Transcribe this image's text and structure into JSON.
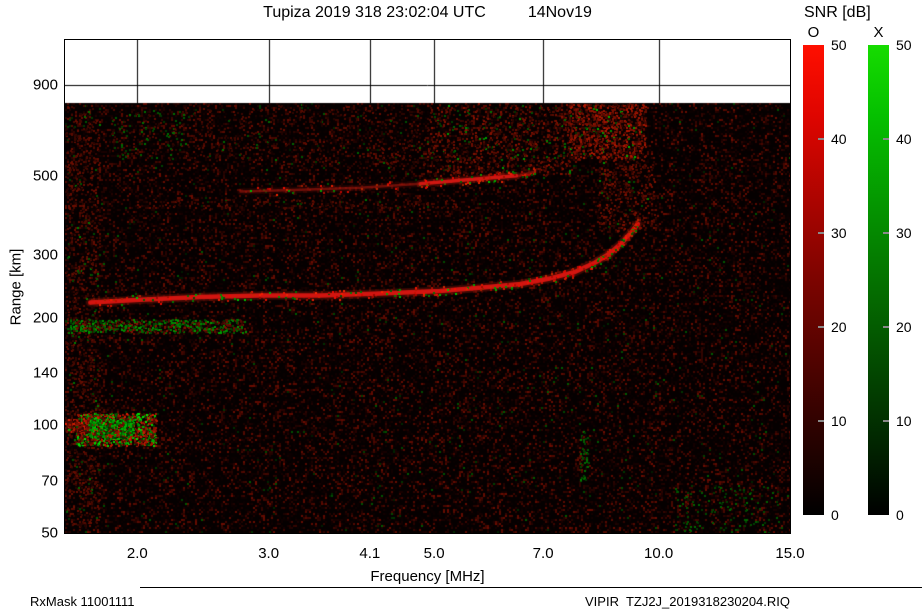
{
  "header": {
    "title": "Tupiza 2019 318 23:02:04 UTC",
    "date": "14Nov19"
  },
  "snr": {
    "title": "SNR [dB]",
    "o_label": "O",
    "x_label": "X",
    "min": 0,
    "max": 50,
    "ticks": [
      "50",
      "40",
      "30",
      "20",
      "10",
      "0"
    ],
    "gradient_stops": [
      "0%",
      "15%",
      "50%",
      "85%",
      "100%"
    ],
    "o_gradient": [
      "#ff0f00",
      "#df0500",
      "#7c0400",
      "#250200",
      "#000000"
    ],
    "x_gradient": [
      "#16dc00",
      "#05c000",
      "#047200",
      "#012500",
      "#000000"
    ]
  },
  "footer": {
    "left": "RxMask 11001111",
    "right": "VIPIR  TZJ2J_2019318230204.RIQ"
  },
  "chart_data": {
    "type": "heatmap",
    "subtype": "ionogram",
    "title": "Tupiza 2019 318 23:02:04 UTC 14Nov19",
    "xlabel": "Frequency [MHz]",
    "ylabel": "Range [km]",
    "x_scale": "log",
    "y_scale": "log",
    "x_range_mhz": [
      1.6,
      15.0
    ],
    "y_range_km": [
      50,
      1200
    ],
    "data_top_km": 800,
    "background": "#050000",
    "legend": "SNR [dB] 0-50; O polarization shown red, X polarization shown green",
    "x_ticks": [
      {
        "label": "2.0",
        "value": 2.0
      },
      {
        "label": "3.0",
        "value": 3.0
      },
      {
        "label": "4.1",
        "value": 4.1
      },
      {
        "label": "5.0",
        "value": 5.0
      },
      {
        "label": "7.0",
        "value": 7.0
      },
      {
        "label": "10.0",
        "value": 10.0
      },
      {
        "label": "15.0",
        "value": 15.0
      }
    ],
    "y_ticks": [
      {
        "label": "900",
        "value": 900
      },
      {
        "label": "500",
        "value": 500
      },
      {
        "label": "300",
        "value": 300
      },
      {
        "label": "200",
        "value": 200
      },
      {
        "label": "140",
        "value": 140
      },
      {
        "label": "100",
        "value": 100
      },
      {
        "label": "70",
        "value": 70
      },
      {
        "label": "50",
        "value": 50
      }
    ],
    "y_gridlines_km": [
      900
    ],
    "features": [
      "F-layer O-mode trace from ~1.7 MHz at ~220 km rising to ~9.4 MHz at ~370 km (foF2 ~ 9.4 MHz)",
      "Faint second-hop / spread echo near 450-515 km between ~2.7 and 6.8 MHz",
      "Strong E-region echo blob at 1.6-2.1 MHz near 90-110 km with mixed O (red) and X (green) returns",
      "Speckled green/red noise band near 185-195 km below 2.8 MHz",
      "Broadband interference noise at 500-800 km, densest between 7.6 and 9.6 MHz",
      "Dark background filled with weak red speckle noise and sparse green points"
    ],
    "traces": [
      {
        "name": "F-layer O-mode echo",
        "points": [
          [
            1.73,
            221
          ],
          [
            2.02,
            225
          ],
          [
            2.43,
            229
          ],
          [
            2.92,
            231
          ],
          [
            3.52,
            231
          ],
          [
            4.23,
            234
          ],
          [
            5.09,
            238
          ],
          [
            5.76,
            243
          ],
          [
            6.52,
            249
          ],
          [
            7.15,
            258
          ],
          [
            7.72,
            269
          ],
          [
            8.22,
            286
          ],
          [
            8.6,
            303
          ],
          [
            8.93,
            325
          ],
          [
            9.21,
            349
          ],
          [
            9.38,
            367
          ]
        ],
        "width": 4.5,
        "color": "#d21510",
        "halo": "rgba(150,25,12,0.35)",
        "flecks": 260,
        "fleck_green": 0.3
      },
      {
        "name": "second-hop echo (faint)",
        "points": [
          [
            2.75,
            452
          ],
          [
            3.31,
            457
          ],
          [
            3.98,
            463
          ],
          [
            4.79,
            475
          ],
          [
            5.59,
            488
          ],
          [
            6.52,
            501
          ],
          [
            6.83,
            514
          ]
        ],
        "width": 2.5,
        "color": "rgba(180,25,15,0.55)",
        "halo": "rgba(120,15,10,0.20)",
        "flecks": 70,
        "fleck_green": 0.22
      },
      {
        "name": "second-hop bright segment",
        "points": [
          [
            4.79,
            475
          ],
          [
            5.59,
            488
          ],
          [
            6.45,
            500
          ]
        ],
        "width": 3.5,
        "color": "#d01712",
        "halo": "rgba(150,20,10,0.30)",
        "flecks": 30,
        "fleck_green": 0.3
      }
    ],
    "noise_patches": [
      {
        "name": "left-edge-noise",
        "mhz": [
          1.6,
          1.78
        ],
        "km": [
          52,
          790
        ],
        "density": 0.28,
        "bright": 80,
        "green": 0.06
      },
      {
        "name": "e-region-noise-band",
        "mhz": [
          1.6,
          2.8
        ],
        "km": [
          182,
          198
        ],
        "density": 1.1,
        "bright": 110,
        "green": 0.55
      },
      {
        "name": "upper-noise-mid",
        "mhz": [
          2.3,
          4.9
        ],
        "km": [
          520,
          795
        ],
        "density": 0.1,
        "bright": 70,
        "green": 0.08
      },
      {
        "name": "upper-noise-left-green",
        "mhz": [
          1.85,
          2.35
        ],
        "km": [
          560,
          760
        ],
        "density": 0.15,
        "bright": 70,
        "green": 0.5
      },
      {
        "name": "upper-noise-dense",
        "mhz": [
          4.9,
          7.6
        ],
        "km": [
          500,
          795
        ],
        "density": 0.32,
        "bright": 110,
        "green": 0.1
      },
      {
        "name": "upper-noise-block",
        "mhz": [
          7.6,
          9.6
        ],
        "km": [
          560,
          795
        ],
        "density": 0.85,
        "bright": 150,
        "green": 0.06
      },
      {
        "name": "streaks-near-foF2",
        "mhz": [
          8.3,
          9.9
        ],
        "km": [
          350,
          560
        ],
        "density": 0.3,
        "bright": 100,
        "green": 0.05
      },
      {
        "name": "faint-400km-band",
        "mhz": [
          2.0,
          5.6
        ],
        "km": [
          405,
          428
        ],
        "density": 0.2,
        "bright": 75,
        "green": 0.05
      },
      {
        "name": "green-streak-8mhz",
        "mhz": [
          7.85,
          8.05
        ],
        "km": [
          70,
          97
        ],
        "density": 0.5,
        "bright": 80,
        "green": 0.8
      },
      {
        "name": "sparse-green-bottom-right",
        "mhz": [
          10.5,
          14.5
        ],
        "km": [
          50,
          68
        ],
        "density": 0.1,
        "bright": 60,
        "green": 0.85
      },
      {
        "name": "e-layer-blob",
        "mhz": [
          1.66,
          2.12
        ],
        "km": [
          88,
          108
        ],
        "density": 2.2,
        "bright": 190,
        "green": 0.35
      },
      {
        "name": "e-layer-blob-green-core",
        "mhz": [
          1.72,
          1.98
        ],
        "km": [
          92,
          104
        ],
        "density": 2.0,
        "bright": 160,
        "green": 0.75
      },
      {
        "name": "e-layer-left-streak",
        "mhz": [
          1.6,
          1.72
        ],
        "km": [
          96,
          104
        ],
        "density": 2.5,
        "bright": 200,
        "green": 0.1
      }
    ]
  }
}
